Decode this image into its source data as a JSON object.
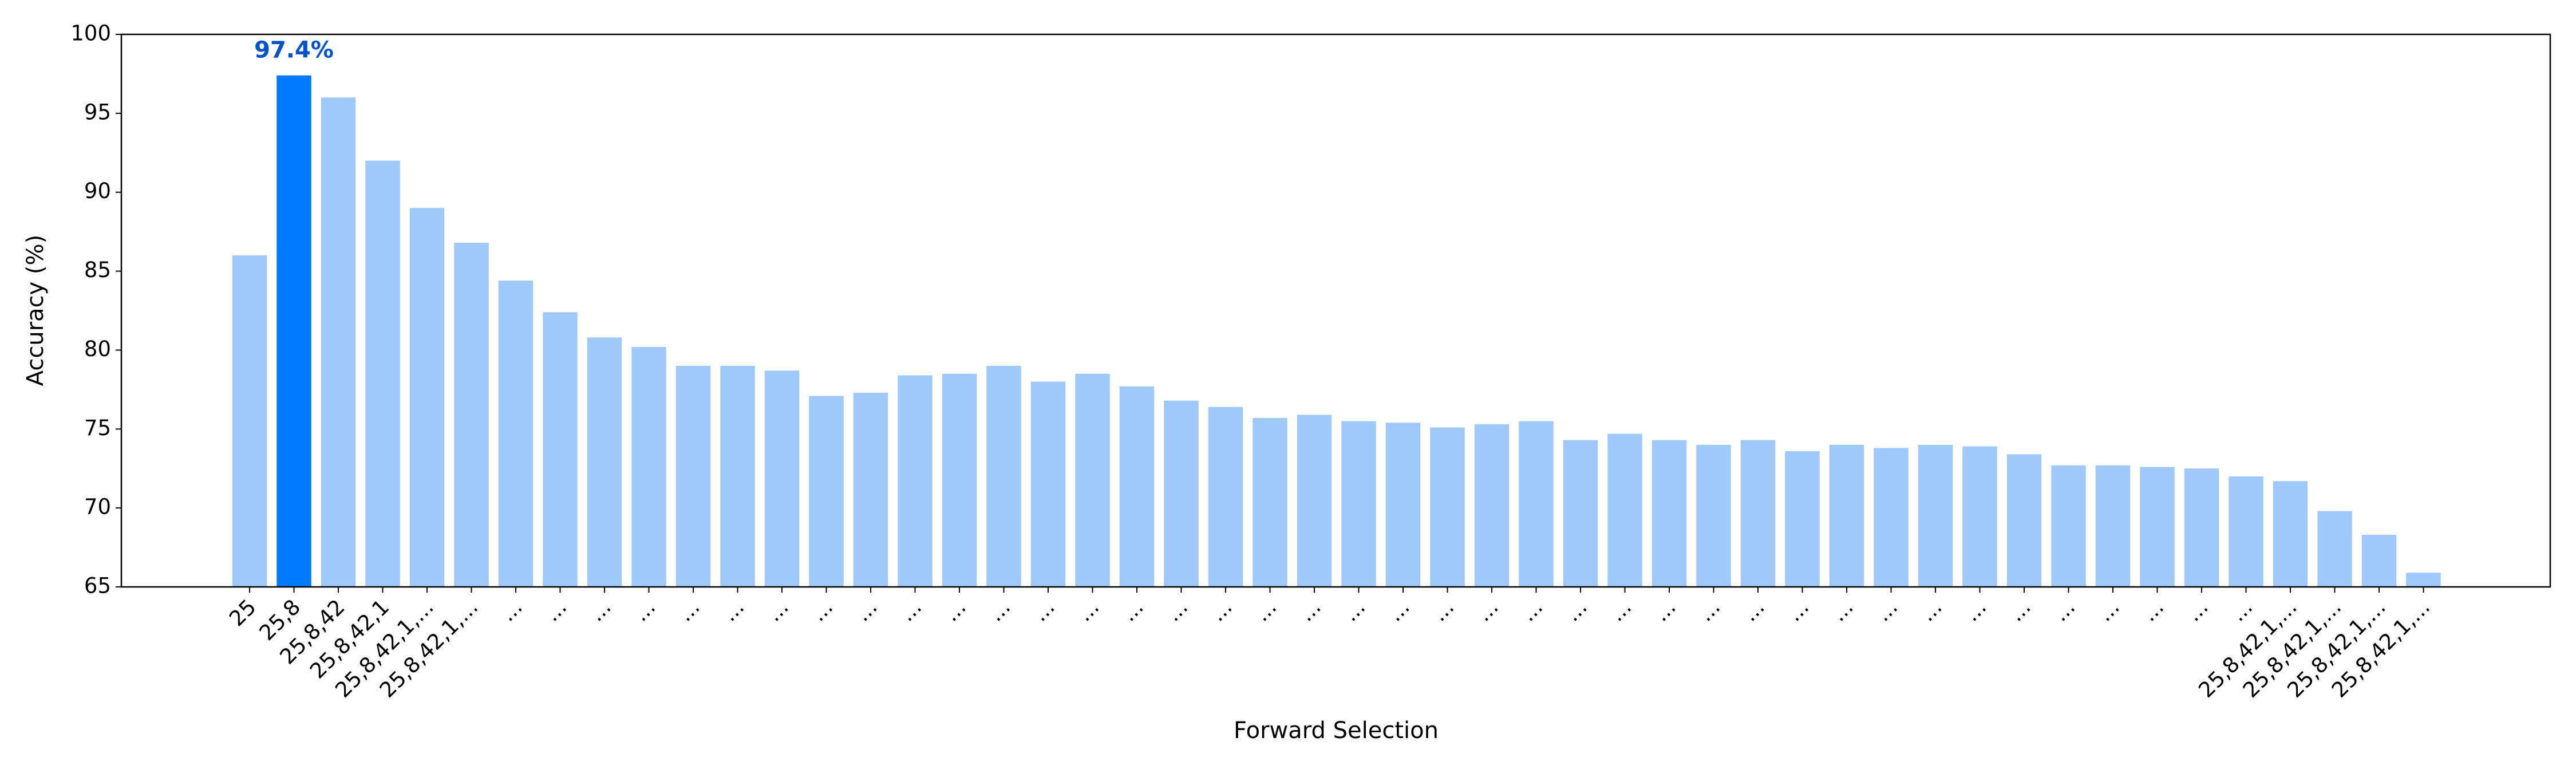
{
  "chart_data": {
    "type": "bar",
    "xlabel": "Forward Selection",
    "ylabel": "Accuracy (%)",
    "categories": [
      "25",
      "25,8",
      "25,8,42",
      "25,8,42,1",
      "25,8,42,1,...",
      "25,8,42,1,...",
      "...",
      "...",
      "...",
      "...",
      "...",
      "...",
      "...",
      "...",
      "...",
      "...",
      "...",
      "...",
      "...",
      "...",
      "...",
      "...",
      "...",
      "...",
      "...",
      "...",
      "...",
      "...",
      "...",
      "...",
      "...",
      "...",
      "...",
      "...",
      "...",
      "...",
      "...",
      "...",
      "...",
      "...",
      "...",
      "...",
      "...",
      "...",
      "...",
      "...",
      "25,8,42,1,...",
      "25,8,42,1,...",
      "25,8,42,1,...",
      "25,8,42,1,..."
    ],
    "values": [
      86,
      97.4,
      96,
      92,
      89,
      86.8,
      84.4,
      82.4,
      80.8,
      80.2,
      79,
      79,
      78.7,
      77.1,
      77.3,
      78.4,
      78.5,
      79,
      78,
      78.5,
      77.7,
      76.8,
      76.4,
      75.7,
      75.9,
      75.5,
      75.4,
      75.1,
      75.3,
      75.5,
      74.3,
      74.7,
      74.3,
      74,
      74.3,
      73.6,
      74,
      73.8,
      74,
      73.9,
      73.4,
      72.7,
      72.7,
      72.6,
      72.5,
      72,
      71.7,
      69.8,
      68.3,
      65.9
    ],
    "value_labels": [
      null,
      "97.4%",
      null,
      null,
      null,
      null,
      null,
      null,
      null,
      null,
      null,
      null,
      null,
      null,
      null,
      null,
      null,
      null,
      null,
      null,
      null,
      null,
      null,
      null,
      null,
      null,
      null,
      null,
      null,
      null,
      null,
      null,
      null,
      null,
      null,
      null,
      null,
      null,
      null,
      null,
      null,
      null,
      null,
      null,
      null,
      null,
      null,
      null,
      null,
      null
    ],
    "colors": [
      "#9fc8fb",
      "#007bff",
      "#9fc8fb",
      "#9fc8fb",
      "#9fc8fb",
      "#9fc8fb",
      "#9fc8fb",
      "#9fc8fb",
      "#9fc8fb",
      "#9fc8fb",
      "#9fc8fb",
      "#9fc8fb",
      "#9fc8fb",
      "#9fc8fb",
      "#9fc8fb",
      "#9fc8fb",
      "#9fc8fb",
      "#9fc8fb",
      "#9fc8fb",
      "#9fc8fb",
      "#9fc8fb",
      "#9fc8fb",
      "#9fc8fb",
      "#9fc8fb",
      "#9fc8fb",
      "#9fc8fb",
      "#9fc8fb",
      "#9fc8fb",
      "#9fc8fb",
      "#9fc8fb",
      "#9fc8fb",
      "#9fc8fb",
      "#9fc8fb",
      "#9fc8fb",
      "#9fc8fb",
      "#9fc8fb",
      "#9fc8fb",
      "#9fc8fb",
      "#9fc8fb",
      "#9fc8fb",
      "#9fc8fb",
      "#9fc8fb",
      "#9fc8fb",
      "#9fc8fb",
      "#9fc8fb",
      "#9fc8fb",
      "#9fc8fb",
      "#9fc8fb",
      "#9fc8fb",
      "#9fc8fb"
    ],
    "value_label_color": "#0052cc",
    "ylim": [
      65,
      100
    ],
    "yticks": [
      65,
      70,
      75,
      80,
      85,
      90,
      95,
      100
    ],
    "grid": false
  }
}
